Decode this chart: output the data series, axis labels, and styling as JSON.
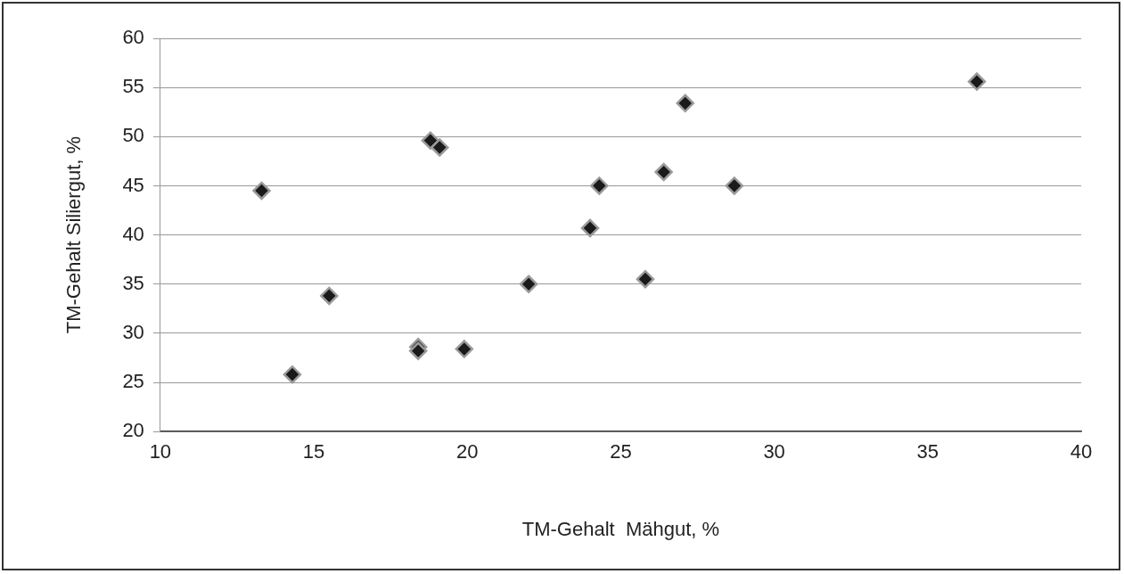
{
  "chart_data": {
    "type": "scatter",
    "xlabel": "TM-Gehalt  Mähgut, %",
    "ylabel": "TM-Gehalt Siliergut, %",
    "series": [
      {
        "color": "#1a1a1a",
        "x": [
          36.6,
          27.1,
          18.8,
          19.1,
          26.4,
          13.3,
          24.3,
          28.7,
          24.0,
          22.0,
          25.8,
          15.5,
          18.4,
          18.4,
          19.9,
          14.3
        ],
        "values": [
          55.6,
          53.4,
          49.6,
          48.9,
          46.4,
          44.5,
          45.0,
          45.0,
          40.7,
          35.0,
          35.5,
          33.8,
          28.6,
          28.2,
          28.4,
          25.8
        ]
      }
    ],
    "xlim": [
      10,
      40
    ],
    "xticks": [
      10,
      15,
      20,
      25,
      30,
      35,
      40
    ],
    "ylim": [
      20,
      60
    ],
    "yticks": [
      20,
      25,
      30,
      35,
      40,
      45,
      50,
      55,
      60
    ],
    "grid": "y",
    "marker": "diamond",
    "legend": false
  }
}
